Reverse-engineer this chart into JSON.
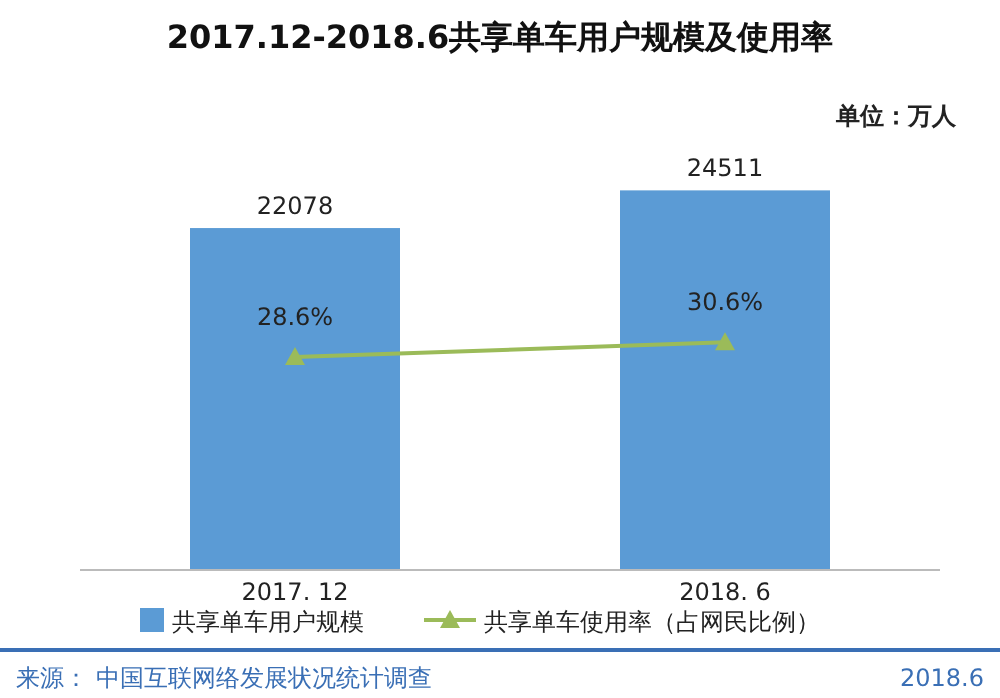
{
  "chart_data": {
    "type": "bar",
    "title": "2017.12-2018.6共享单车用户规模及使用率",
    "categories": [
      "2017. 12",
      "2018. 6"
    ],
    "series": [
      {
        "name": "共享单车用户规模",
        "color": "#5b9bd5",
        "values": [
          22078,
          24511
        ],
        "value_labels": [
          "22078",
          "24511"
        ]
      },
      {
        "name": "共享单车使用率（占网民比例）",
        "type": "line",
        "axis": "y2",
        "color": "#9bbb59",
        "marker": "triangle",
        "values": [
          28.6,
          30.6
        ],
        "value_labels": [
          "28.6%",
          "30.6%"
        ]
      }
    ],
    "annotations": [
      "单位：万人",
      "来源：",
      "中国互联网络发展状况统计调查",
      "2018.6"
    ],
    "legend": "bottom"
  }
}
